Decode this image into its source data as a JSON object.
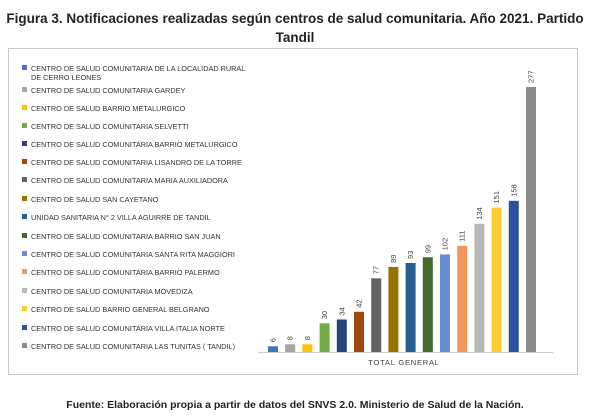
{
  "title": "Figura 3. Notificaciones realizadas según centros de salud comunitaria. Año 2021. Partido Tandil",
  "source": "Fuente: Elaboración propia a partir de datos del SNVS 2.0. Ministerio de Salud de la Nación.",
  "chart_data": {
    "type": "bar",
    "title": "Figura 3. Notificaciones realizadas según centros de salud comunitaria. Año 2021. Partido Tandil",
    "xlabel": "TOTAL GENERAL",
    "ylabel": "",
    "ylim": [
      0,
      280
    ],
    "grid": false,
    "legend_position": "left",
    "categories": [
      "TOTAL GENERAL"
    ],
    "series": [
      {
        "name": "CENTRO DE SALUD COMUNITARIA DE LA LOCALIDAD RURAL DE CERRO LEONES",
        "values": [
          6
        ],
        "color": "#4472c4"
      },
      {
        "name": "CENTRO DE  SALUD COMUNITARIA  GARDEY",
        "values": [
          8
        ],
        "color": "#a5a5a5"
      },
      {
        "name": "CENTRO DE SALUD BARRIO METALURGICO",
        "values": [
          8
        ],
        "color": "#ffc000"
      },
      {
        "name": "CENTRO DE SALUD COMUNITARIA SELVETTI",
        "values": [
          30
        ],
        "color": "#70ad47"
      },
      {
        "name": "CENTRO DE SALUD COMUNITARIA BARRIO METALURGICO",
        "values": [
          34
        ],
        "color": "#264478"
      },
      {
        "name": "CENTRO DE SALUD COMUNITARIA LISANDRO DE LA TORRE",
        "values": [
          42
        ],
        "color": "#9e480e"
      },
      {
        "name": "CENTRO DE SALUD COMUNITARIA MARIA AUXILIADORA",
        "values": [
          77
        ],
        "color": "#636363"
      },
      {
        "name": "CENTRO DE SALUD SAN CAYETANO",
        "values": [
          89
        ],
        "color": "#997300"
      },
      {
        "name": "UNIDAD SANITARIA N° 2 VILLA AGUIRRE DE TANDIL",
        "values": [
          93
        ],
        "color": "#255e91"
      },
      {
        "name": "CENTRO DE SALUD COMUNITARIA BARRIO SAN JUAN",
        "values": [
          99
        ],
        "color": "#43682b"
      },
      {
        "name": "CENTRO DE SALUD COMUNITARIA SANTA RITA MAGGIORI",
        "values": [
          102
        ],
        "color": "#698ed0"
      },
      {
        "name": "CENTRO DE SALUD COMUNITARIA BARRIO PALERMO",
        "values": [
          111
        ],
        "color": "#f1975a"
      },
      {
        "name": "CENTRO DE SALUD COMUNITARIA MOVEDIZA",
        "values": [
          134
        ],
        "color": "#b7b7b7"
      },
      {
        "name": "CENTRO DE SALUD BARRIO GENERAL BELGRANO",
        "values": [
          151
        ],
        "color": "#ffcd33"
      },
      {
        "name": "CENTRO DE SALUD COMUNITARIA  VILLA ITALIA NORTE",
        "values": [
          158
        ],
        "color": "#2e52a1"
      },
      {
        "name": "CENTRO DE SALUD COMUNITARIA LAS TUNITAS   (   TANDIL)",
        "values": [
          277
        ],
        "color": "#8c8c8c"
      }
    ]
  }
}
